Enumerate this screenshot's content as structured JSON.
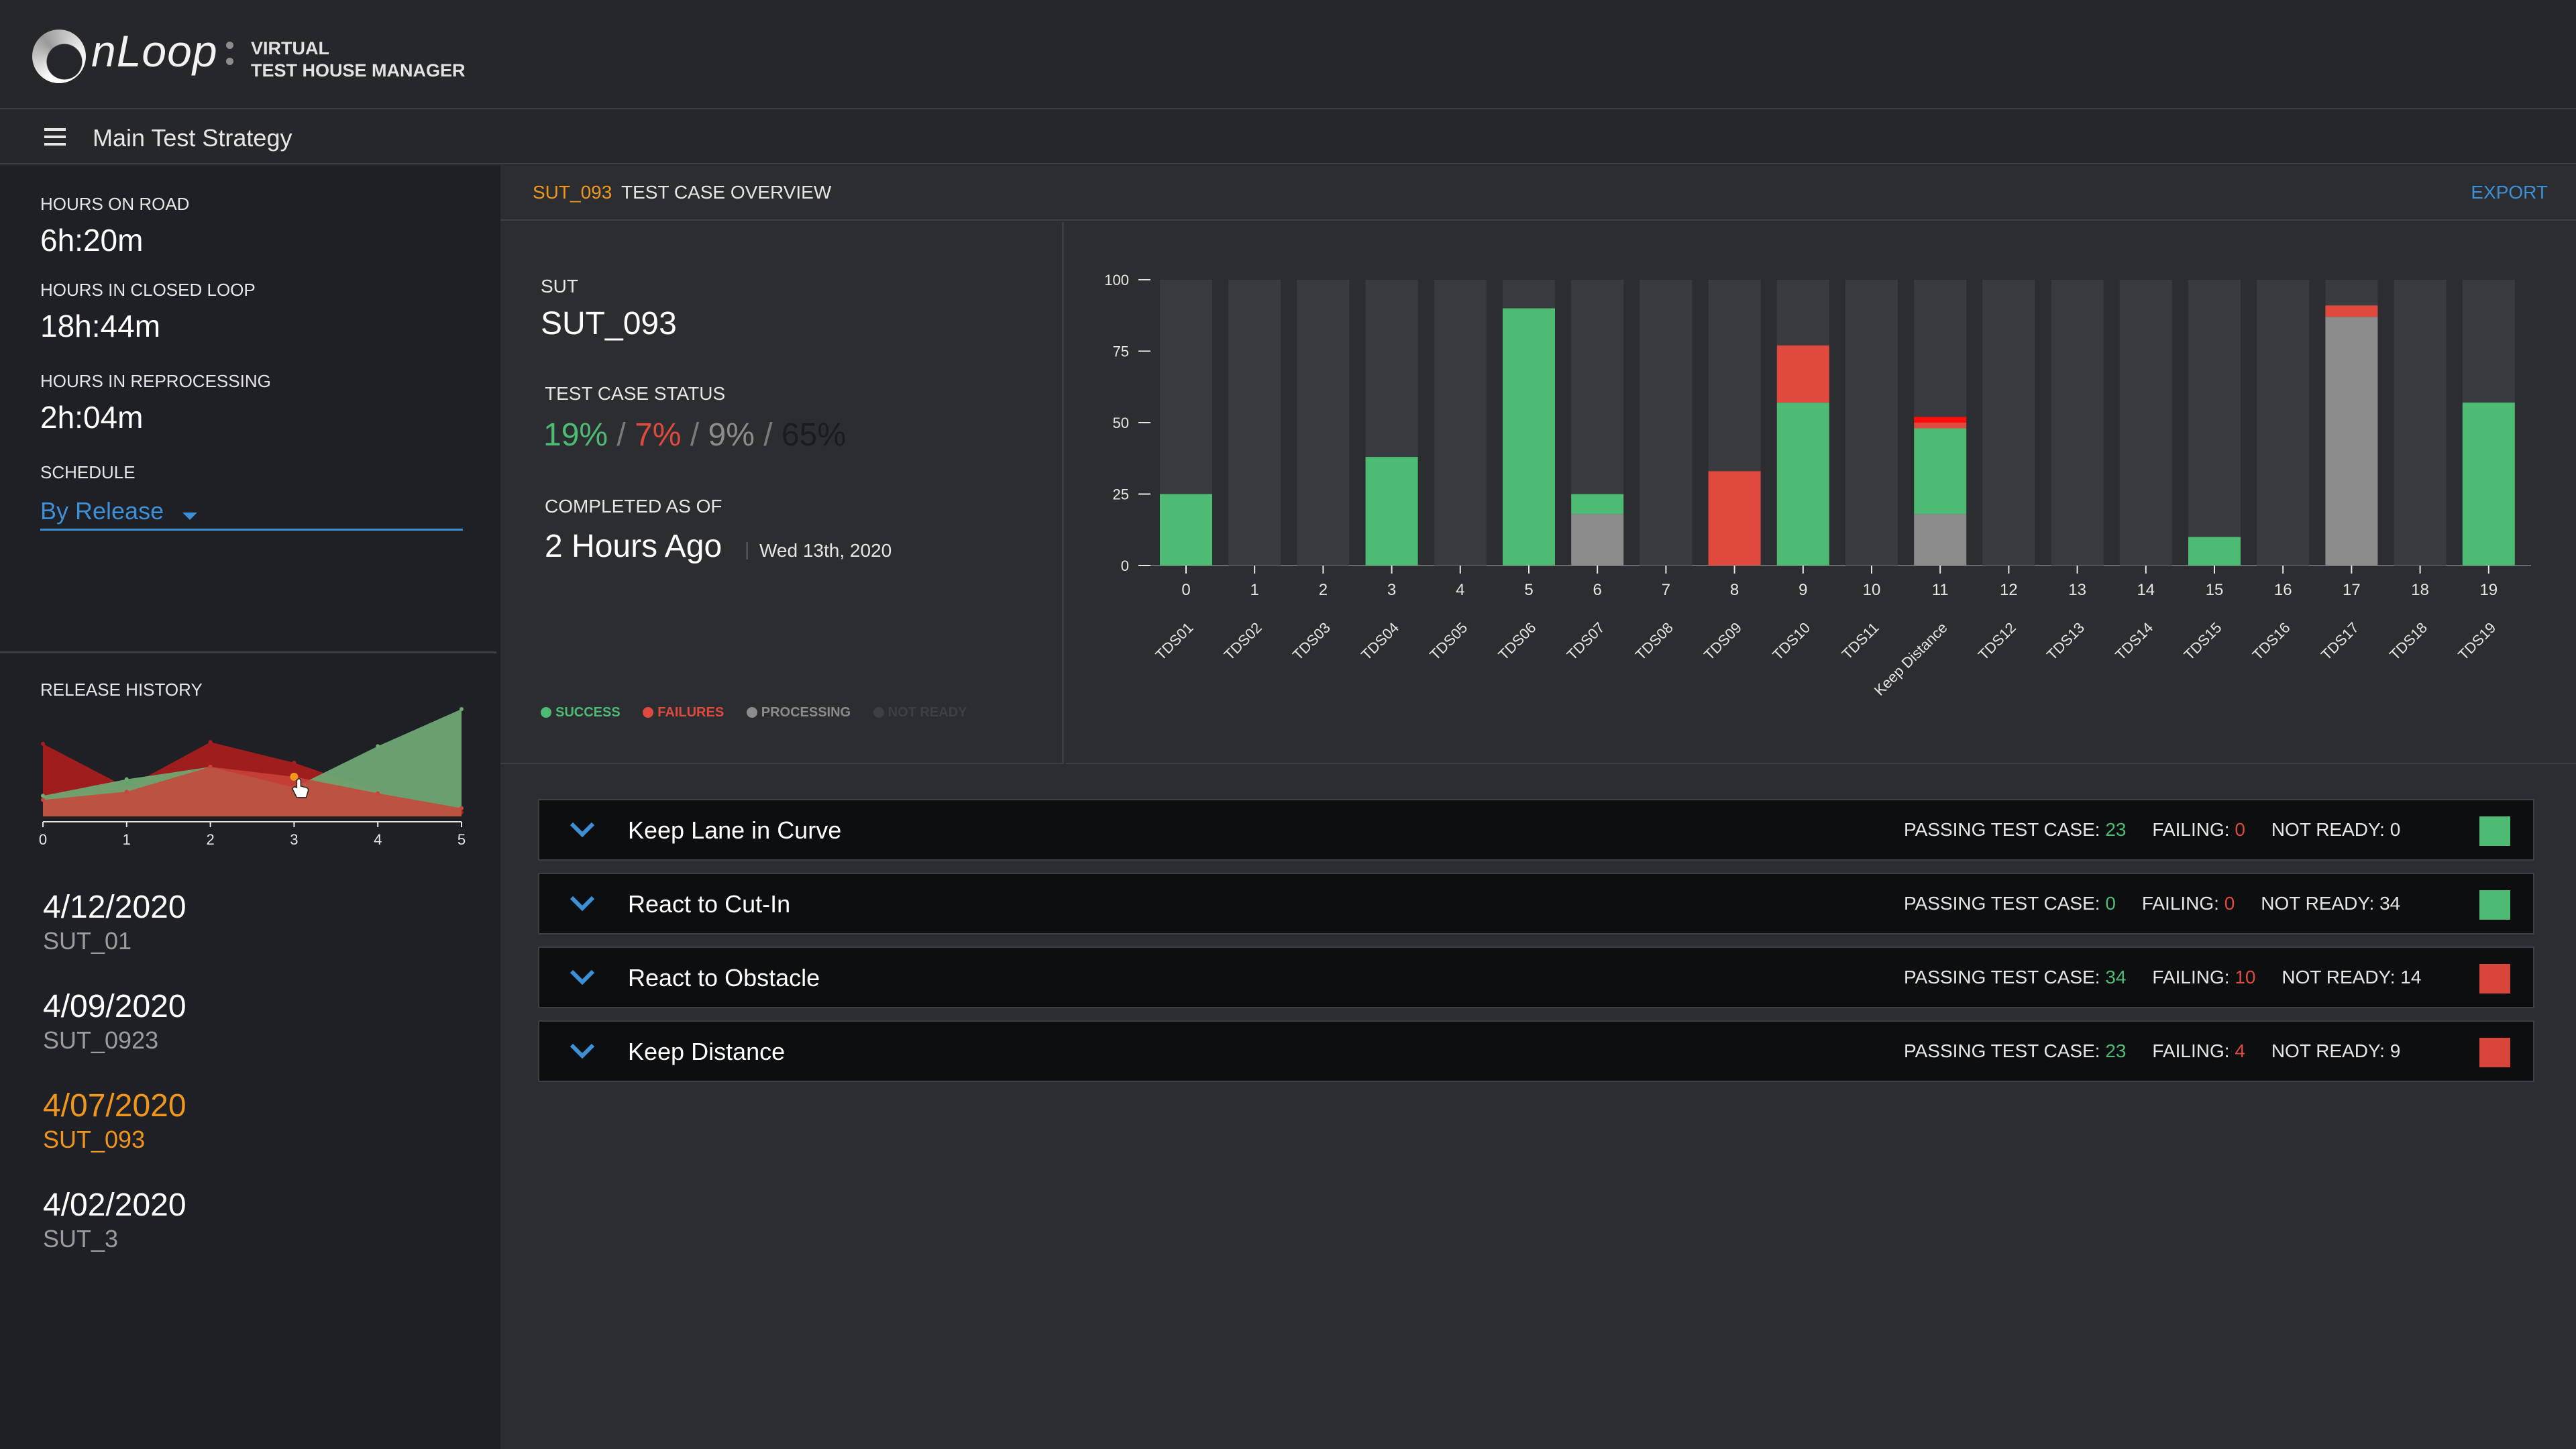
{
  "app": {
    "logo_text": "nLoop",
    "product_line1": "VIRTUAL",
    "product_line2": "TEST HOUSE MANAGER"
  },
  "header": {
    "strategy_title": "Main Test Strategy"
  },
  "sidebar": {
    "hours_on_road_label": "HOURS ON ROAD",
    "hours_on_road_value": "6h:20m",
    "hours_closed_loop_label": "HOURS IN CLOSED LOOP",
    "hours_closed_loop_value": "18h:44m",
    "hours_reprocessing_label": "HOURS IN REPROCESSING",
    "hours_reprocessing_value": "2h:04m",
    "schedule_label": "SCHEDULE",
    "schedule_value": "By Release",
    "release_history_label": "RELEASE HISTORY",
    "releases": [
      {
        "date": "4/12/2020",
        "sut": "SUT_01"
      },
      {
        "date": "4/09/2020",
        "sut": "SUT_0923"
      },
      {
        "date": "4/07/2020",
        "sut": "SUT_093"
      },
      {
        "date": "4/02/2020",
        "sut": "SUT_3"
      }
    ]
  },
  "release_chart": {
    "type": "area",
    "x": [
      0,
      1,
      2,
      3,
      4,
      5
    ],
    "x_ticks": [
      "0",
      "1",
      "2",
      "3",
      "4",
      "5"
    ],
    "series": [
      {
        "values": [
          88,
          35,
          90,
          65,
          30,
          5
        ],
        "color": "#a81e1e"
      },
      {
        "values": [
          25,
          45,
          60,
          35,
          85,
          130
        ],
        "color": "#6fa873"
      },
      {
        "values": [
          20,
          30,
          60,
          48,
          28,
          10
        ],
        "color": "#c9443a"
      }
    ],
    "highlight_x": 3,
    "ylim": [
      0,
      130
    ]
  },
  "overview": {
    "sut_tag": "SUT_093",
    "title": "TEST CASE OVERVIEW",
    "export_label": "EXPORT",
    "sut_label": "SUT",
    "sut_value": "SUT_093",
    "status_label": "TEST CASE STATUS",
    "status_success": "19%",
    "status_failures": "7%",
    "status_processing": "9%",
    "status_not_ready": "65%",
    "status_sep": "/",
    "completed_label": "COMPLETED AS OF",
    "completed_value": "2 Hours Ago",
    "completed_date": "Wed 13th, 2020",
    "legend": {
      "success": "SUCCESS",
      "failures": "FAILURES",
      "processing": "PROCESSING",
      "not_ready": "NOT READY"
    }
  },
  "colors": {
    "success": "#4dbb73",
    "failures": "#e04a3e",
    "processing": "#8c8c8c",
    "not_ready": "#3a3b3f",
    "accent_orange": "#f0961d",
    "accent_blue": "#3d8fd6"
  },
  "chart_data": {
    "type": "bar",
    "stacked": true,
    "x": [
      0,
      1,
      2,
      3,
      4,
      5,
      6,
      7,
      8,
      9,
      10,
      11,
      12,
      13,
      14,
      15,
      16,
      17,
      18,
      19
    ],
    "categories": [
      "TDS01",
      "TDS02",
      "TDS03",
      "TDS04",
      "TDS05",
      "TDS06",
      "TDS07",
      "TDS08",
      "TDS09",
      "TDS10",
      "TDS11",
      "Keep Distance",
      "TDS12",
      "TDS13",
      "TDS14",
      "TDS15",
      "TDS16",
      "TDS17",
      "TDS18",
      "TDS19"
    ],
    "ylim": [
      0,
      100
    ],
    "yticks": [
      0,
      25,
      50,
      75,
      100
    ],
    "series": [
      {
        "key": "processing",
        "color": "#8c8c8c",
        "values": [
          0,
          0,
          0,
          0,
          0,
          0,
          18,
          0,
          0,
          0,
          0,
          18,
          0,
          0,
          0,
          0,
          0,
          87,
          0,
          0
        ]
      },
      {
        "key": "success",
        "color": "#4dbb73",
        "values": [
          25,
          0,
          0,
          38,
          0,
          90,
          7,
          0,
          0,
          57,
          0,
          30,
          0,
          0,
          0,
          10,
          0,
          0,
          0,
          57
        ]
      },
      {
        "key": "failures",
        "color": "#e04a3e",
        "values": [
          0,
          0,
          0,
          0,
          0,
          0,
          0,
          0,
          33,
          20,
          0,
          2,
          0,
          0,
          0,
          0,
          0,
          4,
          0,
          0
        ]
      },
      {
        "key": "failures_highlight",
        "color": "#ff0a0a",
        "values": [
          0,
          0,
          0,
          0,
          0,
          0,
          0,
          0,
          0,
          0,
          0,
          2,
          0,
          0,
          0,
          0,
          0,
          0,
          0,
          0
        ]
      }
    ],
    "grid": false,
    "legend": "bottom-left"
  },
  "test_groups": [
    {
      "title": "Keep Lane in Curve",
      "passing_label": "PASSING TEST CASE:",
      "passing": "23",
      "failing_label": "FAILING:",
      "failing": "0",
      "not_ready_label": "NOT READY:",
      "not_ready": "0",
      "status_color": "#4dbb73"
    },
    {
      "title": "React to Cut-In",
      "passing_label": "PASSING TEST CASE:",
      "passing": "0",
      "failing_label": "FAILING:",
      "failing": "0",
      "not_ready_label": "NOT READY:",
      "not_ready": "34",
      "status_color": "#4dbb73"
    },
    {
      "title": "React to Obstacle",
      "passing_label": "PASSING TEST CASE:",
      "passing": "34",
      "failing_label": "FAILING:",
      "failing": "10",
      "not_ready_label": "NOT READY:",
      "not_ready": "14",
      "status_color": "#d9453b"
    },
    {
      "title": "Keep Distance",
      "passing_label": "PASSING TEST CASE:",
      "passing": "23",
      "failing_label": "FAILING:",
      "failing": "4",
      "not_ready_label": "NOT READY:",
      "not_ready": "9",
      "status_color": "#d9453b"
    }
  ]
}
